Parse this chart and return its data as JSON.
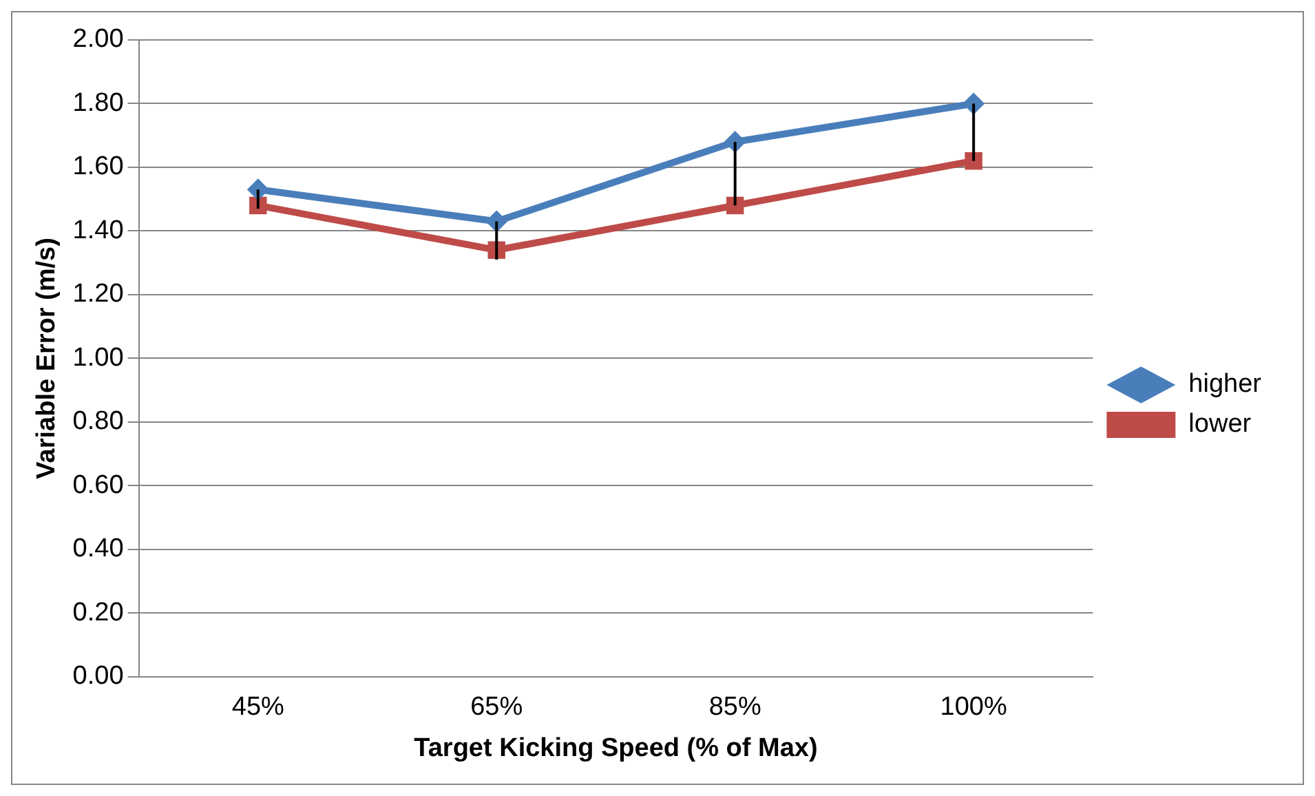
{
  "chart_data": {
    "type": "line",
    "xlabel": "Target Kicking Speed (% of Max)",
    "ylabel": "Variable Error (m/s)",
    "categories": [
      "45%",
      "65%",
      "85%",
      "100%"
    ],
    "series": [
      {
        "name": "higher",
        "color": "#4a7ebb",
        "marker": "diamond",
        "values": [
          1.53,
          1.43,
          1.68,
          1.8
        ],
        "errors": [
          [
            1.47,
            1.53
          ],
          [
            1.31,
            1.43
          ],
          [
            1.48,
            1.68
          ],
          [
            1.62,
            1.8
          ]
        ]
      },
      {
        "name": "lower",
        "color": "#be4b48",
        "marker": "square",
        "values": [
          1.48,
          1.34,
          1.48,
          1.62
        ]
      }
    ],
    "ylim": [
      0,
      2
    ],
    "yticks": [
      {
        "value": 0,
        "label": "0.00"
      },
      {
        "value": 0.2,
        "label": "0.20"
      },
      {
        "value": 0.4,
        "label": "0.40"
      },
      {
        "value": 0.6,
        "label": "0.60"
      },
      {
        "value": 0.8,
        "label": "0.80"
      },
      {
        "value": 1,
        "label": "1.00"
      },
      {
        "value": 1.2,
        "label": "1.20"
      },
      {
        "value": 1.4,
        "label": "1.40"
      },
      {
        "value": 1.6,
        "label": "1.60"
      },
      {
        "value": 1.8,
        "label": "1.80"
      },
      {
        "value": 2,
        "label": "2.00"
      }
    ],
    "grid": "y",
    "legend": "right",
    "line_style": "solid"
  }
}
